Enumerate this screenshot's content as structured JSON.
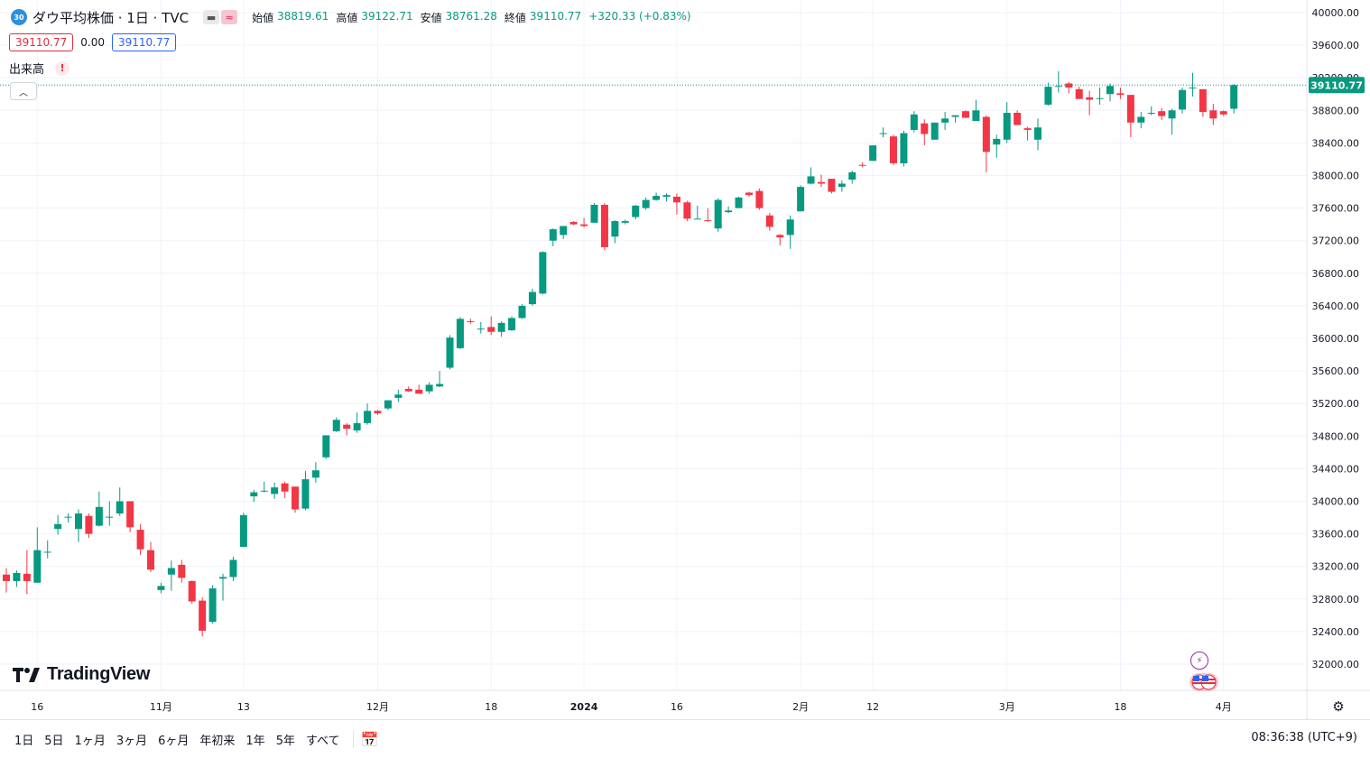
{
  "header": {
    "symbol_badge": "30",
    "title": "ダウ平均株価 · 1日 · TVC",
    "ohlc": {
      "open_label": "始値",
      "open": "38819.61",
      "high_label": "高値",
      "high": "39122.71",
      "low_label": "安値",
      "low": "38761.28",
      "close_label": "終値",
      "close": "39110.77",
      "change": "+320.33 (+0.83%)"
    }
  },
  "quote_row": {
    "sell": "39110.77",
    "spread": "0.00",
    "buy": "39110.77"
  },
  "volume_row": {
    "label": "出来高",
    "warning": "!"
  },
  "logo": {
    "text": "TradingView"
  },
  "bottom_bar": {
    "ranges": [
      "1日",
      "5日",
      "1ヶ月",
      "3ヶ月",
      "6ヶ月",
      "年初来",
      "1年",
      "5年",
      "すべて"
    ],
    "clock": "08:36:38 (UTC+9)"
  },
  "colors": {
    "up": "#089981",
    "down": "#f23645",
    "grid": "#f0f3fa",
    "last_price": "#089981"
  },
  "icons": [
    "calendar-icon",
    "settings-icon",
    "lightning-icon",
    "us-flag-icon",
    "chevron-up-icon"
  ],
  "chart_data": {
    "type": "candlestick",
    "title": "ダウ平均株価 · 1日 · TVC",
    "ylim": [
      31800,
      40150
    ],
    "y_ticks": [
      32000,
      32400,
      32800,
      33200,
      33600,
      34000,
      34400,
      34800,
      35200,
      35600,
      36000,
      36400,
      36800,
      37200,
      37600,
      38000,
      38400,
      38800,
      39200,
      39600,
      40000
    ],
    "y_tick_labels": [
      "32000.00",
      "32400.00",
      "32800.00",
      "33200.00",
      "33600.00",
      "34000.00",
      "34400.00",
      "34800.00",
      "35200.00",
      "35600.00",
      "36000.00",
      "36400.00",
      "36800.00",
      "37200.00",
      "37600.00",
      "38000.00",
      "38400.00",
      "38800.00",
      "39200.00",
      "39600.00",
      "40000.00"
    ],
    "x_labels": [
      {
        "text": "16",
        "date": "2023-10-16"
      },
      {
        "text": "11月",
        "date": "2023-11-01"
      },
      {
        "text": "13",
        "date": "2023-11-13"
      },
      {
        "text": "12月",
        "date": "2023-12-01"
      },
      {
        "text": "18",
        "date": "2023-12-18"
      },
      {
        "text": "2024",
        "date": "2024-01-02"
      },
      {
        "text": "16",
        "date": "2024-01-16"
      },
      {
        "text": "2月",
        "date": "2024-02-01"
      },
      {
        "text": "12",
        "date": "2024-02-12"
      },
      {
        "text": "3月",
        "date": "2024-03-01"
      },
      {
        "text": "18",
        "date": "2024-03-18"
      },
      {
        "text": "4月",
        "date": "2024-04-01"
      }
    ],
    "last_price": 39110.77,
    "last_price_label": "39110.77",
    "candles": [
      [
        33100,
        33180,
        32880,
        33020
      ],
      [
        33020,
        33150,
        32950,
        33120
      ],
      [
        33110,
        33400,
        32860,
        33020
      ],
      [
        33000,
        33680,
        33000,
        33400
      ],
      [
        33380,
        33520,
        33300,
        33380
      ],
      [
        33660,
        33830,
        33590,
        33720
      ],
      [
        33800,
        33850,
        33740,
        33810
      ],
      [
        33660,
        33900,
        33500,
        33850
      ],
      [
        33820,
        33850,
        33550,
        33600
      ],
      [
        33700,
        34120,
        33690,
        33930
      ],
      [
        33810,
        34000,
        33700,
        33810
      ],
      [
        33850,
        34170,
        33820,
        34000
      ],
      [
        34000,
        34000,
        33620,
        33680
      ],
      [
        33650,
        33720,
        33340,
        33410
      ],
      [
        33400,
        33500,
        33130,
        33160
      ],
      [
        32910,
        33000,
        32870,
        32960
      ],
      [
        33100,
        33270,
        32900,
        33180
      ],
      [
        33220,
        33280,
        33000,
        33060
      ],
      [
        33020,
        33030,
        32740,
        32770
      ],
      [
        32780,
        32820,
        32340,
        32410
      ],
      [
        32520,
        32970,
        32500,
        32930
      ],
      [
        33050,
        33110,
        32780,
        33070
      ],
      [
        33070,
        33320,
        33020,
        33280
      ],
      [
        33440,
        33860,
        33440,
        33830
      ],
      [
        34060,
        34140,
        33990,
        34110
      ],
      [
        34120,
        34240,
        34110,
        34130
      ],
      [
        34090,
        34230,
        34030,
        34170
      ],
      [
        34220,
        34240,
        34040,
        34120
      ],
      [
        34180,
        34180,
        33860,
        33900
      ],
      [
        33910,
        34370,
        33890,
        34270
      ],
      [
        34290,
        34480,
        34230,
        34380
      ],
      [
        34540,
        34810,
        34520,
        34810
      ],
      [
        34860,
        35030,
        34850,
        35000
      ],
      [
        34940,
        34960,
        34810,
        34890
      ],
      [
        34870,
        35090,
        34840,
        34960
      ],
      [
        34960,
        35200,
        34940,
        35110
      ],
      [
        35110,
        35120,
        35060,
        35080
      ],
      [
        35140,
        35240,
        35120,
        35240
      ],
      [
        35270,
        35370,
        35220,
        35310
      ],
      [
        35380,
        35410,
        35340,
        35350
      ],
      [
        35370,
        35430,
        35320,
        35320
      ],
      [
        35350,
        35460,
        35320,
        35430
      ],
      [
        35410,
        35600,
        35400,
        35440
      ],
      [
        35640,
        36040,
        35620,
        36010
      ],
      [
        35880,
        36260,
        35870,
        36240
      ],
      [
        36210,
        36240,
        36180,
        36200
      ],
      [
        36110,
        36200,
        36060,
        36120
      ],
      [
        36140,
        36270,
        36040,
        36080
      ],
      [
        36080,
        36210,
        36020,
        36190
      ],
      [
        36100,
        36270,
        36090,
        36250
      ],
      [
        36250,
        36420,
        36240,
        36400
      ],
      [
        36420,
        36610,
        36400,
        36570
      ],
      [
        36550,
        37070,
        36540,
        37060
      ],
      [
        37200,
        37350,
        37130,
        37340
      ],
      [
        37270,
        37380,
        37220,
        37380
      ],
      [
        37430,
        37440,
        37390,
        37400
      ],
      [
        37400,
        37480,
        37360,
        37380
      ],
      [
        37420,
        37660,
        37420,
        37640
      ],
      [
        37640,
        37660,
        37080,
        37120
      ],
      [
        37250,
        37450,
        37170,
        37440
      ],
      [
        37420,
        37460,
        37400,
        37440
      ],
      [
        37490,
        37640,
        37460,
        37630
      ],
      [
        37600,
        37730,
        37580,
        37700
      ],
      [
        37700,
        37790,
        37690,
        37750
      ],
      [
        37740,
        37780,
        37680,
        37760
      ],
      [
        37740,
        37780,
        37520,
        37670
      ],
      [
        37670,
        37690,
        37440,
        37470
      ],
      [
        37470,
        37630,
        37470,
        37470
      ],
      [
        37450,
        37600,
        37430,
        37440
      ],
      [
        37350,
        37720,
        37310,
        37700
      ],
      [
        37550,
        37620,
        37540,
        37570
      ],
      [
        37600,
        37740,
        37600,
        37730
      ],
      [
        37790,
        37800,
        37740,
        37760
      ],
      [
        37810,
        37840,
        37580,
        37600
      ],
      [
        37510,
        37540,
        37320,
        37370
      ],
      [
        37270,
        37280,
        37140,
        37240
      ],
      [
        37270,
        37510,
        37100,
        37460
      ],
      [
        37560,
        37880,
        37560,
        37860
      ],
      [
        37900,
        38100,
        37890,
        37990
      ],
      [
        37920,
        38010,
        37860,
        37900
      ],
      [
        37960,
        37960,
        37780,
        37800
      ],
      [
        37860,
        37940,
        37800,
        37900
      ],
      [
        37950,
        38060,
        37900,
        38040
      ],
      [
        38130,
        38160,
        38100,
        38120
      ],
      [
        38180,
        38370,
        38180,
        38370
      ],
      [
        38520,
        38590,
        38470,
        38520
      ],
      [
        38480,
        38500,
        38130,
        38150
      ],
      [
        38150,
        38550,
        38110,
        38520
      ],
      [
        38560,
        38790,
        38530,
        38750
      ],
      [
        38640,
        38690,
        38370,
        38510
      ],
      [
        38440,
        38620,
        38440,
        38650
      ],
      [
        38650,
        38780,
        38560,
        38700
      ],
      [
        38720,
        38730,
        38650,
        38740
      ],
      [
        38790,
        38800,
        38700,
        38710
      ],
      [
        38670,
        38930,
        38670,
        38800
      ],
      [
        38720,
        38740,
        38040,
        38290
      ],
      [
        38380,
        38500,
        38220,
        38450
      ],
      [
        38440,
        38900,
        38400,
        38770
      ],
      [
        38770,
        38800,
        38620,
        38620
      ],
      [
        38580,
        38600,
        38430,
        38560
      ],
      [
        38440,
        38700,
        38310,
        38590
      ],
      [
        38870,
        39140,
        38860,
        39090
      ],
      [
        39100,
        39280,
        39020,
        39100
      ],
      [
        39130,
        39150,
        39010,
        39080
      ],
      [
        39060,
        39090,
        38940,
        38940
      ],
      [
        38960,
        39040,
        38740,
        38930
      ],
      [
        38950,
        39080,
        38870,
        38950
      ],
      [
        39000,
        39130,
        38910,
        39100
      ],
      [
        39010,
        39080,
        38940,
        38990
      ],
      [
        38990,
        38990,
        38470,
        38650
      ],
      [
        38650,
        38780,
        38580,
        38720
      ],
      [
        38770,
        38850,
        38740,
        38770
      ],
      [
        38790,
        38830,
        38680,
        38730
      ],
      [
        38700,
        38820,
        38500,
        38800
      ],
      [
        38810,
        39080,
        38760,
        39050
      ],
      [
        39080,
        39260,
        38970,
        39080
      ],
      [
        39060,
        39060,
        38720,
        38780
      ],
      [
        38800,
        38880,
        38620,
        38700
      ],
      [
        38790,
        38800,
        38730,
        38750
      ],
      [
        38819.61,
        39122.71,
        38761.28,
        39110.77
      ]
    ]
  }
}
